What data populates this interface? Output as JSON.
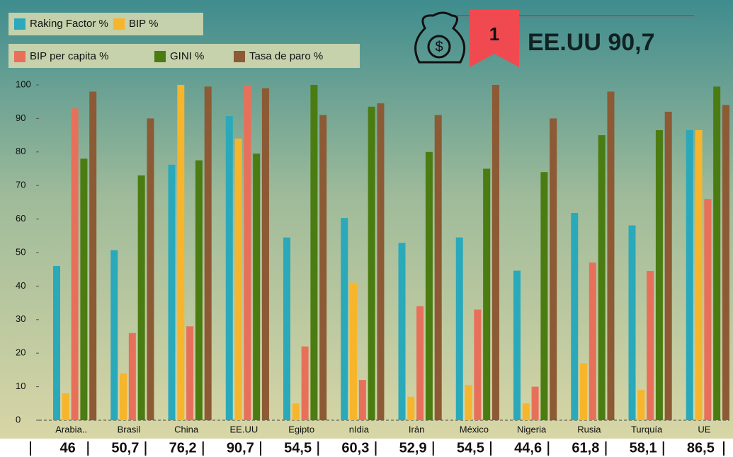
{
  "chart_data": {
    "type": "bar",
    "badge": {
      "rank": "1",
      "text": "EE.UU 90,7"
    },
    "categories": [
      "Arabia..",
      "Brasil",
      "China",
      "EE.UU",
      "Egipto",
      "nIdia",
      "Irán",
      "México",
      "Nigeria",
      "Rusia",
      "Turquía",
      "UE"
    ],
    "series": [
      {
        "name": "Raking Factor %",
        "color": "#2aa9bb",
        "values": [
          46,
          50.7,
          76.2,
          90.7,
          54.5,
          60.3,
          52.9,
          54.5,
          44.6,
          61.8,
          58.1,
          86.5
        ],
        "value_labels": [
          "46",
          "50,7",
          "76,2",
          "90,7",
          "54,5",
          "60,3",
          "52,9",
          "54,5",
          "44,6",
          "61,8",
          "58,1",
          "86,5"
        ]
      },
      {
        "name": "BIP %",
        "color": "#f7b52c",
        "values": [
          8,
          14,
          100,
          84,
          5,
          41,
          7,
          10.5,
          5,
          17,
          9,
          86.5
        ]
      },
      {
        "name": "BIP per capita %",
        "color": "#e8705a",
        "values": [
          93,
          26,
          28,
          100,
          22,
          12,
          34,
          33,
          10,
          47,
          44.5,
          66
        ]
      },
      {
        "name": "GINI %",
        "color": "#4b7c12",
        "values": [
          78,
          73,
          77.5,
          79.5,
          100,
          93.5,
          80,
          75,
          74,
          85,
          86.5,
          99.5
        ]
      },
      {
        "name": "Tasa de paro %",
        "color": "#8c5a34",
        "values": [
          98,
          90,
          99.5,
          99,
          91,
          94.5,
          91,
          100,
          90,
          98,
          92,
          94
        ]
      }
    ],
    "ylim": [
      0,
      100
    ],
    "yticks": [
      0,
      10,
      20,
      30,
      40,
      50,
      60,
      70,
      80,
      90,
      100
    ],
    "grid": false
  }
}
